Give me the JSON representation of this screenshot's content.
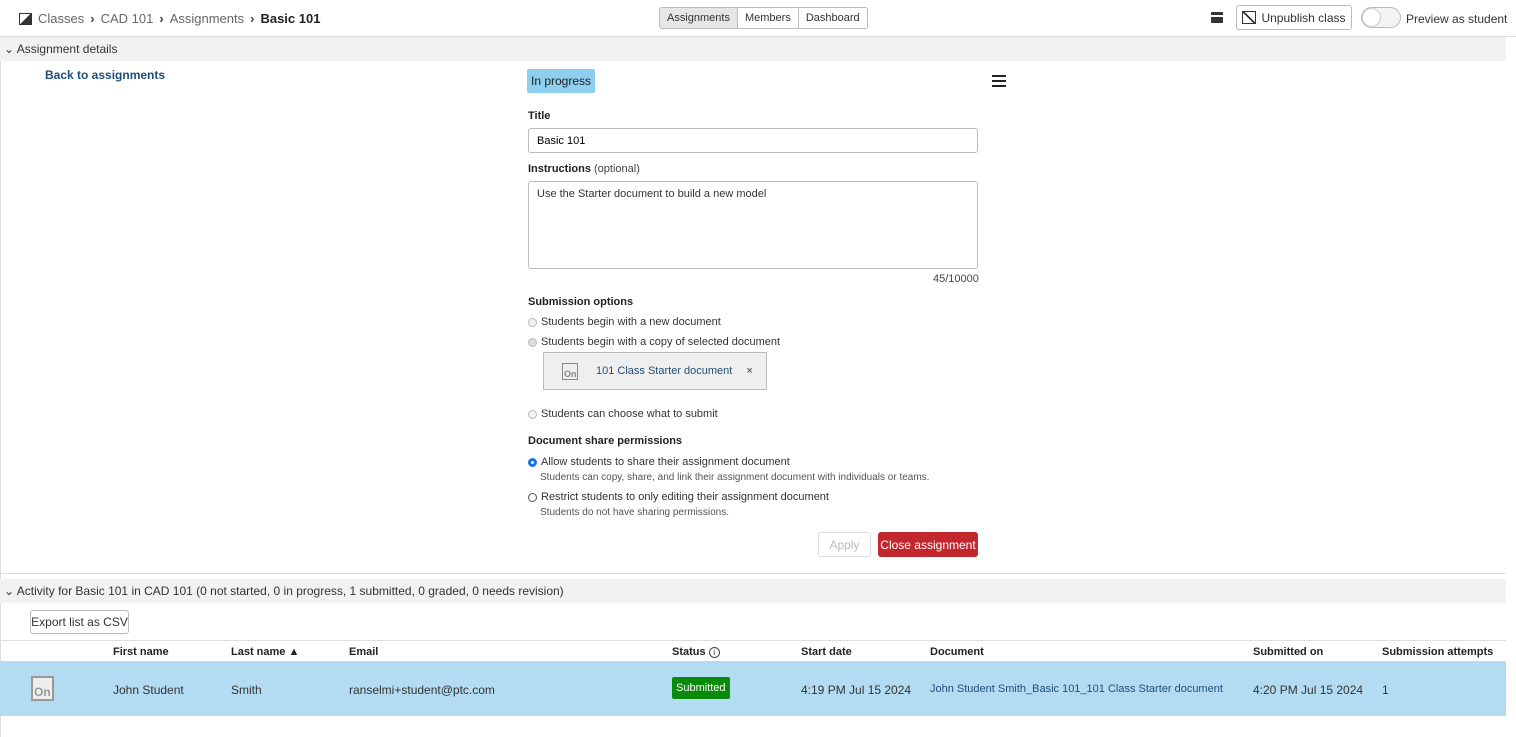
{
  "breadcrumb": [
    "Classes",
    "CAD 101",
    "Assignments",
    "Basic 101"
  ],
  "tabs": [
    "Assignments",
    "Members",
    "Dashboard"
  ],
  "toolbar": {
    "unpublish": "Unpublish class",
    "preview": "Preview as student"
  },
  "details": {
    "header": "Assignment details",
    "back": "Back to assignments",
    "status": "In progress",
    "title_label": "Title",
    "title_value": "Basic 101",
    "instructions_label": "Instructions",
    "instructions_optional": "(optional)",
    "instructions_value": "Use the Starter document to build a new model",
    "char_count": "45/10000",
    "submission_label": "Submission options",
    "opt_new": "Students begin with a new document",
    "opt_copy": "Students begin with a copy of selected document",
    "doc_name": "101 Class Starter document",
    "remove": "×",
    "opt_choose": "Students can choose what to submit",
    "share_label": "Document share permissions",
    "share_allow": "Allow students to share their assignment document",
    "share_allow_desc": "Students can copy, share, and link their assignment document with individuals or teams.",
    "share_restrict": "Restrict students to only editing their assignment document",
    "share_restrict_desc": "Students do not have sharing permissions.",
    "apply": "Apply",
    "close": "Close assignment"
  },
  "activity": {
    "header": "Activity for Basic 101 in CAD 101 (0 not started, 0 in progress, 1 submitted, 0 graded, 0 needs revision)",
    "export": "Export list as CSV",
    "columns": [
      "First name",
      "Last name ▲",
      "Email",
      "Status",
      "Start date",
      "Document",
      "Submitted on",
      "Submission attempts"
    ],
    "rows": [
      {
        "first": "John Student",
        "last": "Smith",
        "email": "ranselmi+student@ptc.com",
        "status": "Submitted",
        "start": "4:19 PM Jul 15 2024",
        "document": "John Student Smith_Basic 101_101 Class Starter document",
        "submitted": "4:20 PM Jul 15 2024",
        "attempts": "1"
      }
    ]
  },
  "colors": {
    "status_bg": "#8ecfef",
    "close": "#c1272d",
    "submitted": "#0a8a0a",
    "row": "#b3dcf3",
    "link": "#1f4e79"
  }
}
